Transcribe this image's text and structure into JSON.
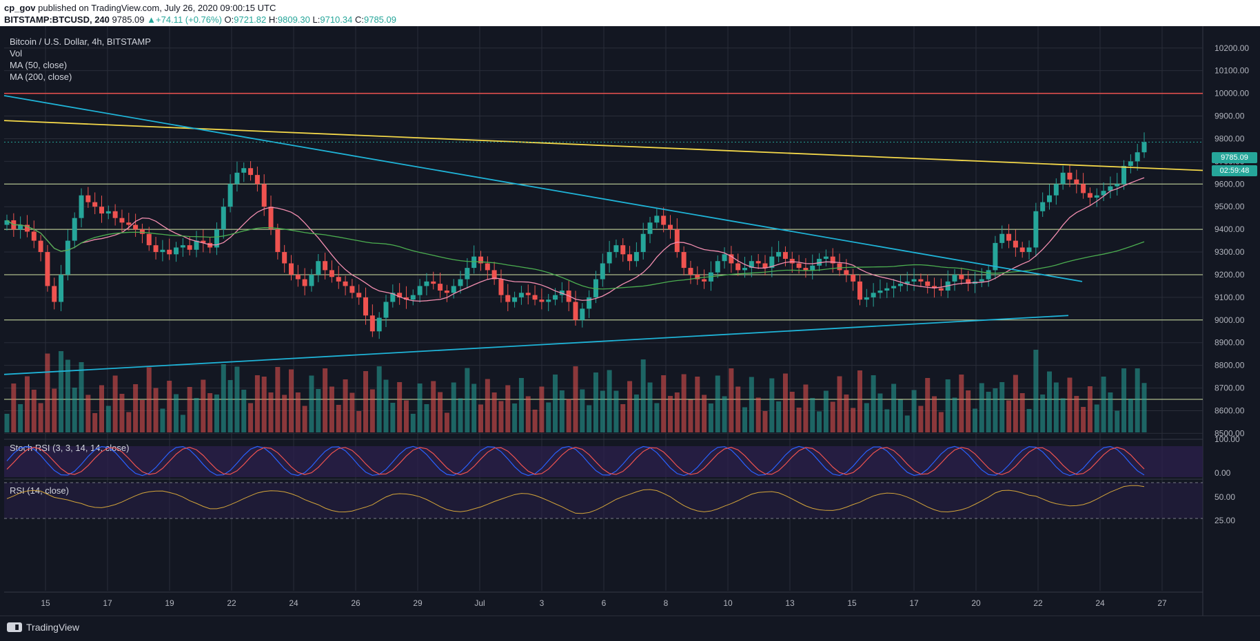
{
  "header": {
    "publisher": "cp_gov",
    "published_text": "published on TradingView.com, July 26, 2020 09:00:15 UTC",
    "symbol": "BITSTAMP:BTCUSD, 240",
    "last": "9785.09",
    "change": "+74.11 (+0.76%)",
    "o_label": "O:",
    "o": "9721.82",
    "h_label": "H:",
    "h": "9809.30",
    "l_label": "L:",
    "l": "9710.34",
    "c_label": "C:",
    "c": "9785.09"
  },
  "legend": {
    "title": "Bitcoin / U.S. Dollar, 4h, BITSTAMP",
    "vol": "Vol",
    "ma50": "MA (50, close)",
    "ma200": "MA (200, close)"
  },
  "indicators": {
    "stoch": "Stoch RSI (3, 3, 14, 14, close)",
    "rsi": "RSI (14, close)"
  },
  "price_tags": {
    "price": "9785.09",
    "countdown": "02:59:48"
  },
  "brand": "TradingView",
  "colors": {
    "background": "#131722",
    "up": "#26a69a",
    "down": "#ef5350",
    "trendline": "#1fb4d8",
    "yellow_line": "#f5d94a",
    "resistance": "#ef5350",
    "ma50": "#f48fb1",
    "ma200": "#4caf50",
    "horizontal_levels": "#d4e6a5"
  },
  "chart_data": {
    "type": "candlestick",
    "symbol": "BTCUSD",
    "timeframe": "4h",
    "ylim": [
      8480,
      10260
    ],
    "y_ticks": [
      "10200.00",
      "10100.00",
      "10000.00",
      "9900.00",
      "9800.00",
      "9700.00",
      "9600.00",
      "9500.00",
      "9400.00",
      "9300.00",
      "9200.00",
      "9100.00",
      "9000.00",
      "8900.00",
      "8800.00",
      "8700.00",
      "8600.00",
      "8500.00"
    ],
    "x_ticks": [
      "15",
      "17",
      "19",
      "22",
      "24",
      "26",
      "29",
      "Jul",
      "3",
      "6",
      "8",
      "10",
      "13",
      "15",
      "17",
      "20",
      "22",
      "24",
      "27"
    ],
    "horizontal_levels": [
      10000,
      9600,
      9400,
      9200,
      9000,
      8650
    ],
    "resistance_level": 10000,
    "stoch_rsi_ticks": [
      "100.00",
      "0.00"
    ],
    "rsi_ticks": [
      "50.00",
      "25.00"
    ],
    "closes_approx": [
      9440,
      9400,
      9420,
      9390,
      9350,
      9300,
      9150,
      9080,
      9200,
      9350,
      9450,
      9550,
      9520,
      9500,
      9470,
      9480,
      9450,
      9430,
      9420,
      9400,
      9380,
      9330,
      9300,
      9310,
      9290,
      9320,
      9330,
      9310,
      9350,
      9340,
      9320,
      9400,
      9500,
      9600,
      9650,
      9670,
      9640,
      9600,
      9500,
      9400,
      9300,
      9250,
      9200,
      9180,
      9150,
      9200,
      9260,
      9220,
      9190,
      9170,
      9150,
      9120,
      9100,
      9020,
      8950,
      9010,
      9080,
      9120,
      9100,
      9090,
      9110,
      9150,
      9170,
      9160,
      9130,
      9120,
      9150,
      9180,
      9230,
      9280,
      9250,
      9220,
      9180,
      9110,
      9080,
      9100,
      9120,
      9110,
      9090,
      9080,
      9090,
      9110,
      9130,
      9080,
      9000,
      9050,
      9100,
      9180,
      9250,
      9300,
      9330,
      9290,
      9260,
      9300,
      9380,
      9430,
      9460,
      9420,
      9400,
      9300,
      9230,
      9200,
      9180,
      9170,
      9210,
      9260,
      9290,
      9250,
      9220,
      9230,
      9260,
      9250,
      9230,
      9280,
      9300,
      9270,
      9250,
      9230,
      9220,
      9240,
      9270,
      9280,
      9250,
      9220,
      9200,
      9170,
      9090,
      9100,
      9120,
      9130,
      9140,
      9150,
      9160,
      9170,
      9180,
      9170,
      9150,
      9140,
      9130,
      9170,
      9200,
      9180,
      9160,
      9170,
      9180,
      9220,
      9340,
      9380,
      9350,
      9320,
      9300,
      9320,
      9480,
      9520,
      9550,
      9600,
      9650,
      9620,
      9600,
      9560,
      9540,
      9550,
      9570,
      9590,
      9600,
      9680,
      9700,
      9740,
      9785
    ],
    "moving_averages": [
      "MA (50, close)",
      "MA (200, close)"
    ]
  }
}
